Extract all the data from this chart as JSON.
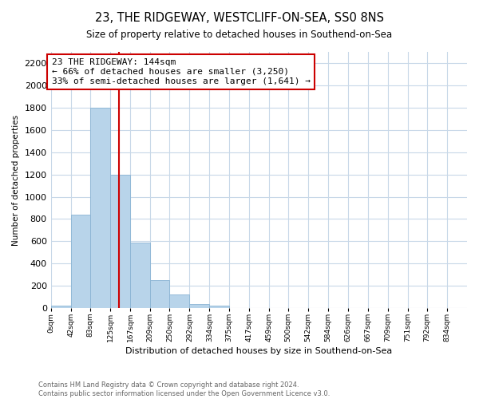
{
  "title": "23, THE RIDGEWAY, WESTCLIFF-ON-SEA, SS0 8NS",
  "subtitle": "Size of property relative to detached houses in Southend-on-Sea",
  "xlabel": "Distribution of detached houses by size in Southend-on-Sea",
  "ylabel": "Number of detached properties",
  "footnote1": "Contains HM Land Registry data © Crown copyright and database right 2024.",
  "footnote2": "Contains public sector information licensed under the Open Government Licence v3.0.",
  "bin_labels": [
    "0sqm",
    "42sqm",
    "83sqm",
    "125sqm",
    "167sqm",
    "209sqm",
    "250sqm",
    "292sqm",
    "334sqm",
    "375sqm",
    "417sqm",
    "459sqm",
    "500sqm",
    "542sqm",
    "584sqm",
    "626sqm",
    "667sqm",
    "709sqm",
    "751sqm",
    "792sqm",
    "834sqm"
  ],
  "bar_values": [
    25,
    840,
    1800,
    1200,
    590,
    250,
    120,
    40,
    25,
    0,
    0,
    0,
    0,
    0,
    0,
    0,
    0,
    0,
    0,
    0
  ],
  "bar_color": "#b8d4ea",
  "vline_x": 144,
  "vline_color": "#cc0000",
  "annotation_line1": "23 THE RIDGEWAY: 144sqm",
  "annotation_line2": "← 66% of detached houses are smaller (3,250)",
  "annotation_line3": "33% of semi-detached houses are larger (1,641) →",
  "annotation_box_edge_color": "#cc0000",
  "ylim": [
    0,
    2300
  ],
  "yticks": [
    0,
    200,
    400,
    600,
    800,
    1000,
    1200,
    1400,
    1600,
    1800,
    2000,
    2200
  ],
  "bin_edges": [
    0,
    42,
    83,
    125,
    167,
    209,
    250,
    292,
    334,
    375,
    417,
    459,
    500,
    542,
    584,
    626,
    667,
    709,
    751,
    792,
    834
  ],
  "x_max": 876,
  "background_color": "#ffffff",
  "grid_color": "#c8d8e8"
}
